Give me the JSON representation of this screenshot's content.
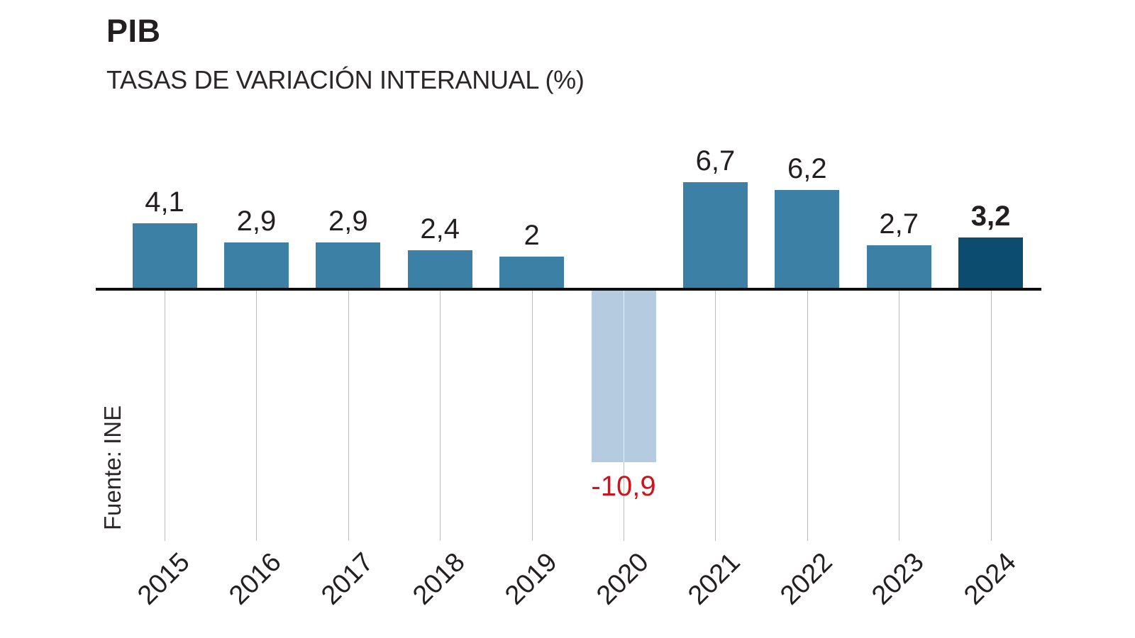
{
  "title": "PIB",
  "subtitle": "TASAS DE VARIACIÓN INTERANUAL (%)",
  "source": "Fuente: INE",
  "chart_data": {
    "type": "bar",
    "title": "PIB",
    "subtitle": "TASAS DE VARIACIÓN INTERANUAL (%)",
    "source": "Fuente: INE",
    "categories": [
      "2015",
      "2016",
      "2017",
      "2018",
      "2019",
      "2020",
      "2021",
      "2022",
      "2023",
      "2024"
    ],
    "values": [
      4.1,
      2.9,
      2.9,
      2.4,
      2,
      -10.9,
      6.7,
      6.2,
      2.7,
      3.2
    ],
    "value_labels": [
      "4,1",
      "2,9",
      "2,9",
      "2,4",
      "2",
      "-10,9",
      "6,7",
      "6,2",
      "2,7",
      "3,2"
    ],
    "highlight_index": 9,
    "bold_label_index": 9,
    "ylim": [
      -12,
      8
    ],
    "grid": "vertical-ticks-below-axis",
    "legend": "none",
    "colors": {
      "bar_default": "#3c81a5",
      "bar_negative": "#b4cbe0",
      "bar_highlight": "#0b4c6f",
      "label_default": "#231f20",
      "label_negative": "#d1121b",
      "axis": "#0d0d0d",
      "gridline": "#bcbcbc",
      "title": "#231f20",
      "subtitle": "#2b2627"
    }
  }
}
